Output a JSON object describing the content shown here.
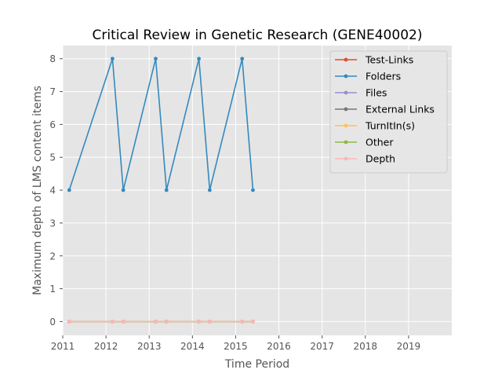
{
  "chart_data": {
    "type": "line",
    "title": "Critical Review in Genetic Research (GENE40002)",
    "xlabel": "Time Period",
    "ylabel": "Maximum depth of LMS content items",
    "xlim": [
      2011,
      2020
    ],
    "ylim": [
      -0.42,
      8.4
    ],
    "x_ticks": [
      2011,
      2012,
      2013,
      2014,
      2015,
      2016,
      2017,
      2018,
      2019
    ],
    "y_ticks": [
      0,
      1,
      2,
      3,
      4,
      5,
      6,
      7,
      8
    ],
    "grid": true,
    "legend_position": "top-right",
    "x": [
      2011.15,
      2012.15,
      2012.4,
      2013.15,
      2013.4,
      2014.15,
      2014.4,
      2015.15,
      2015.4
    ],
    "series": [
      {
        "name": "Test-Links",
        "color": "#E24A33",
        "values": [
          0,
          0,
          0,
          0,
          0,
          0,
          0,
          0,
          0
        ]
      },
      {
        "name": "Folders",
        "color": "#348ABD",
        "values": [
          4,
          8,
          4,
          8,
          4,
          8,
          4,
          8,
          4
        ]
      },
      {
        "name": "Files",
        "color": "#988ED5",
        "values": [
          0,
          0,
          0,
          0,
          0,
          0,
          0,
          0,
          0
        ]
      },
      {
        "name": "External Links",
        "color": "#777777",
        "values": [
          0,
          0,
          0,
          0,
          0,
          0,
          0,
          0,
          0
        ]
      },
      {
        "name": "TurnItIn(s)",
        "color": "#FBC15E",
        "values": [
          0,
          0,
          0,
          0,
          0,
          0,
          0,
          0,
          0
        ]
      },
      {
        "name": "Other",
        "color": "#8EBA42",
        "values": [
          0,
          0,
          0,
          0,
          0,
          0,
          0,
          0,
          0
        ]
      },
      {
        "name": "Depth",
        "color": "#FFB5B8",
        "values": [
          0,
          0,
          0,
          0,
          0,
          0,
          0,
          0,
          0
        ]
      }
    ]
  }
}
